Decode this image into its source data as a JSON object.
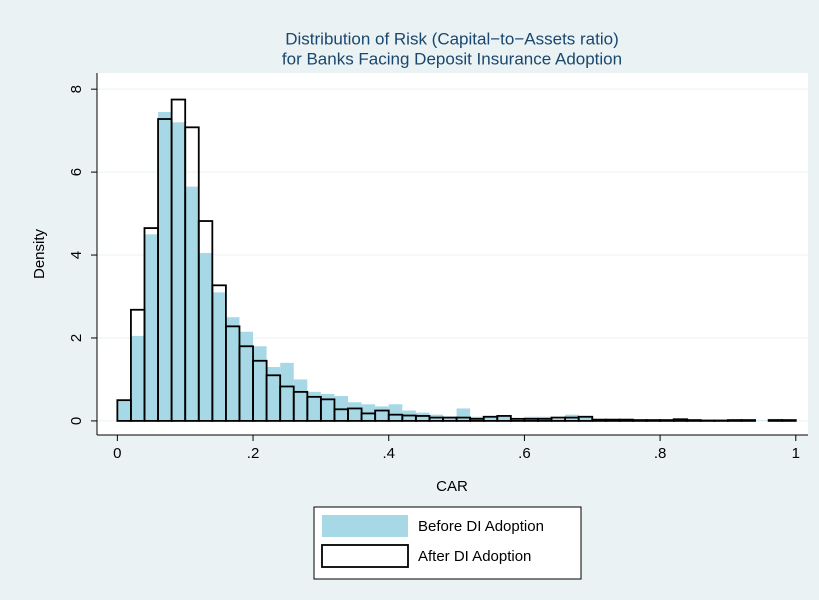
{
  "chart_data": {
    "type": "histogram",
    "title": "Distribution of Risk (Capital−to−Assets ratio)",
    "subtitle": "for Banks Facing Deposit Insurance Adoption",
    "x_label": "CAR",
    "y_label": "Density",
    "bins": [
      0,
      0.02,
      0.04,
      0.06,
      0.08,
      0.1,
      0.12,
      0.14,
      0.16,
      0.18,
      0.2,
      0.22,
      0.24,
      0.26,
      0.28,
      0.3,
      0.32,
      0.34,
      0.36,
      0.38,
      0.4,
      0.42,
      0.44,
      0.46,
      0.48,
      0.5,
      0.52,
      0.54,
      0.56,
      0.58,
      0.6,
      0.62,
      0.64,
      0.66,
      0.68,
      0.7,
      0.72,
      0.74,
      0.76,
      0.78,
      0.8,
      0.82,
      0.84,
      0.86,
      0.88,
      0.9,
      0.92,
      0.94,
      0.96,
      0.98,
      1
    ],
    "series": [
      {
        "name": "Before DI Adoption",
        "color": "#a7d8e6",
        "values": [
          0.5,
          2.05,
          4.5,
          7.45,
          7.2,
          5.65,
          4.05,
          3.1,
          2.5,
          2.15,
          1.8,
          1.3,
          1.4,
          1.0,
          0.7,
          0.65,
          0.6,
          0.45,
          0.4,
          0.35,
          0.4,
          0.25,
          0.2,
          0.15,
          0.1,
          0.3,
          0.1,
          0.1,
          0.1,
          0.05,
          0.1,
          0.1,
          0.05,
          0.15,
          0.1,
          0.05,
          0.05,
          0.05,
          0.03,
          0.03,
          0.03,
          0.03,
          0.02,
          0.02,
          0.02,
          0.02,
          0.01,
          0.01,
          0.05,
          0
        ]
      },
      {
        "name": "After DI Adoption",
        "color": "#000000",
        "values": [
          0.5,
          2.68,
          4.65,
          7.28,
          7.75,
          7.08,
          4.82,
          3.27,
          2.28,
          1.8,
          1.45,
          1.1,
          0.83,
          0.7,
          0.58,
          0.52,
          0.28,
          0.3,
          0.18,
          0.25,
          0.15,
          0.13,
          0.12,
          0.08,
          0.08,
          0.08,
          0.05,
          0.1,
          0.12,
          0.05,
          0.05,
          0.05,
          0.08,
          0.08,
          0.1,
          0.03,
          0.03,
          0.03,
          0.02,
          0.02,
          0.02,
          0.04,
          0.02,
          0.01,
          0.01,
          0.02,
          0.02,
          0,
          0.02,
          0.02
        ]
      }
    ],
    "xlim": [
      -0.03,
      1.018
    ],
    "ylim": [
      -0.34,
      8.39
    ],
    "xticks": [
      0,
      {
        "value": 0.2,
        "label": ".2"
      },
      {
        "value": 0.4,
        "label": ".4"
      },
      {
        "value": 0.6,
        "label": ".6"
      },
      {
        "value": 0.8,
        "label": ".8"
      },
      1
    ],
    "yticks": [
      0,
      2,
      4,
      6,
      8
    ],
    "grid": true,
    "legend": "bottom"
  }
}
